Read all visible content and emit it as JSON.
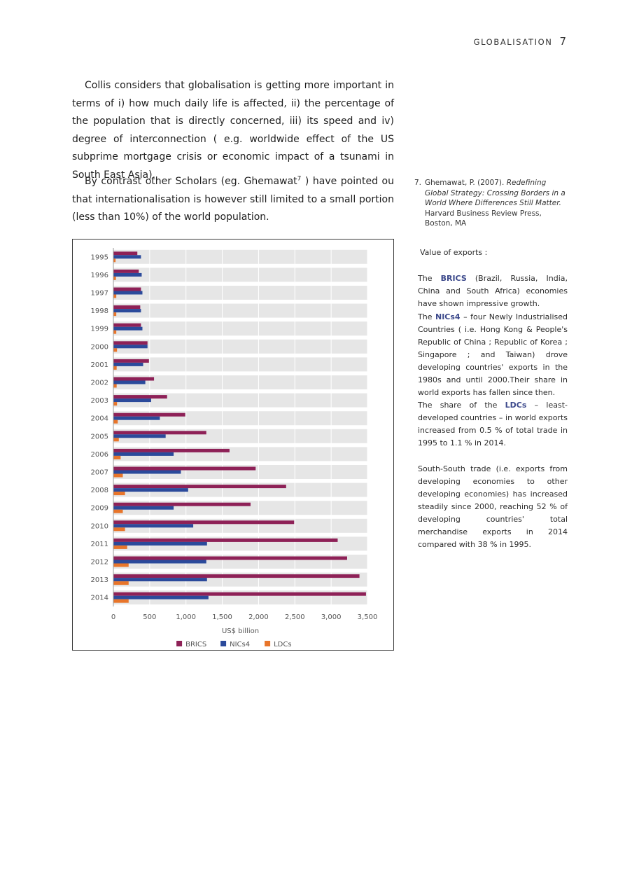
{
  "header": {
    "section": "GLOBALISATION",
    "page_number": "7"
  },
  "paragraphs": {
    "p1": "Collis considers that globalisation is getting more important in terms of i) how much daily life is affected, ii) the percentage of the population that is directly concerned, iii) its speed and iv) degree of interconnection ( e.g. worldwide effect of the US subprime mortgage crisis or economic impact of a tsunami in South East Asia).",
    "p2_before": "By contrast other Scholars (eg. Ghemawat",
    "p2_sup": "7",
    "p2_after": " ) have pointed ou that internationalisation is however still limited to a small portion (less than 10%) of the world population."
  },
  "footnote": {
    "number": "7.",
    "author": "Ghemawat, P. (2007). ",
    "title": "Redefining Global Strategy: Crossing Borders in a World Where Differences Still Matter.",
    "publisher": " Harvard Business Review Press, Boston, MA"
  },
  "sidebar": {
    "title": "Value of exports :",
    "brics_intro": "The ",
    "brics_term": "BRICS",
    "brics_rest": " (Brazil, Russia, India, China and South Africa) economies have shown impressive growth.",
    "nics_intro": "The ",
    "nics_term": "NICs4",
    "nics_rest": " – four Newly Industrialised Countries ( i.e. Hong Kong & People's Republic of China ; Republic of Korea ; Singapore ; and Taiwan) drove developing countries' exports in the 1980s and until 2000.Their share in world exports has fallen since then.",
    "ldcs_intro": "The share of the ",
    "ldcs_term": "LDCs",
    "ldcs_rest": " – least-developed countries – in world exports increased from 0.5 % of total trade in 1995 to 1.1 % in 2014.",
    "south": "South-South trade (i.e. exports from developing economies to other developing economies) has increased steadily since 2000, reaching 52 % of developing countries' total merchandise exports in 2014 compared with 38 % in 1995."
  },
  "chart_data": {
    "type": "bar",
    "orientation": "horizontal",
    "categories": [
      "1995",
      "1996",
      "1997",
      "1998",
      "1999",
      "2000",
      "2001",
      "2002",
      "2003",
      "2004",
      "2005",
      "2006",
      "2007",
      "2008",
      "2009",
      "2010",
      "2011",
      "2012",
      "2013",
      "2014"
    ],
    "series": [
      {
        "name": "BRICS",
        "color": "#8e2157",
        "values": [
          330,
          350,
          380,
          370,
          380,
          470,
          490,
          560,
          740,
          990,
          1280,
          1600,
          1960,
          2380,
          1890,
          2490,
          3090,
          3220,
          3390,
          3480
        ]
      },
      {
        "name": "NICs4",
        "color": "#2b4a9b",
        "values": [
          380,
          390,
          400,
          380,
          400,
          470,
          410,
          440,
          520,
          640,
          720,
          830,
          930,
          1030,
          830,
          1100,
          1290,
          1280,
          1290,
          1310
        ]
      },
      {
        "name": "LDCs",
        "color": "#e8752a",
        "values": [
          30,
          35,
          40,
          40,
          40,
          50,
          45,
          45,
          50,
          60,
          75,
          100,
          130,
          160,
          130,
          160,
          190,
          210,
          210,
          210
        ]
      }
    ],
    "xlabel": "US$ billion",
    "xlim": [
      0,
      3500
    ],
    "xticks": [
      "0",
      "500",
      "1,000",
      "1,500",
      "2,000",
      "2,500",
      "3,000",
      "3,500"
    ],
    "legend_position": "bottom",
    "grid": true
  }
}
